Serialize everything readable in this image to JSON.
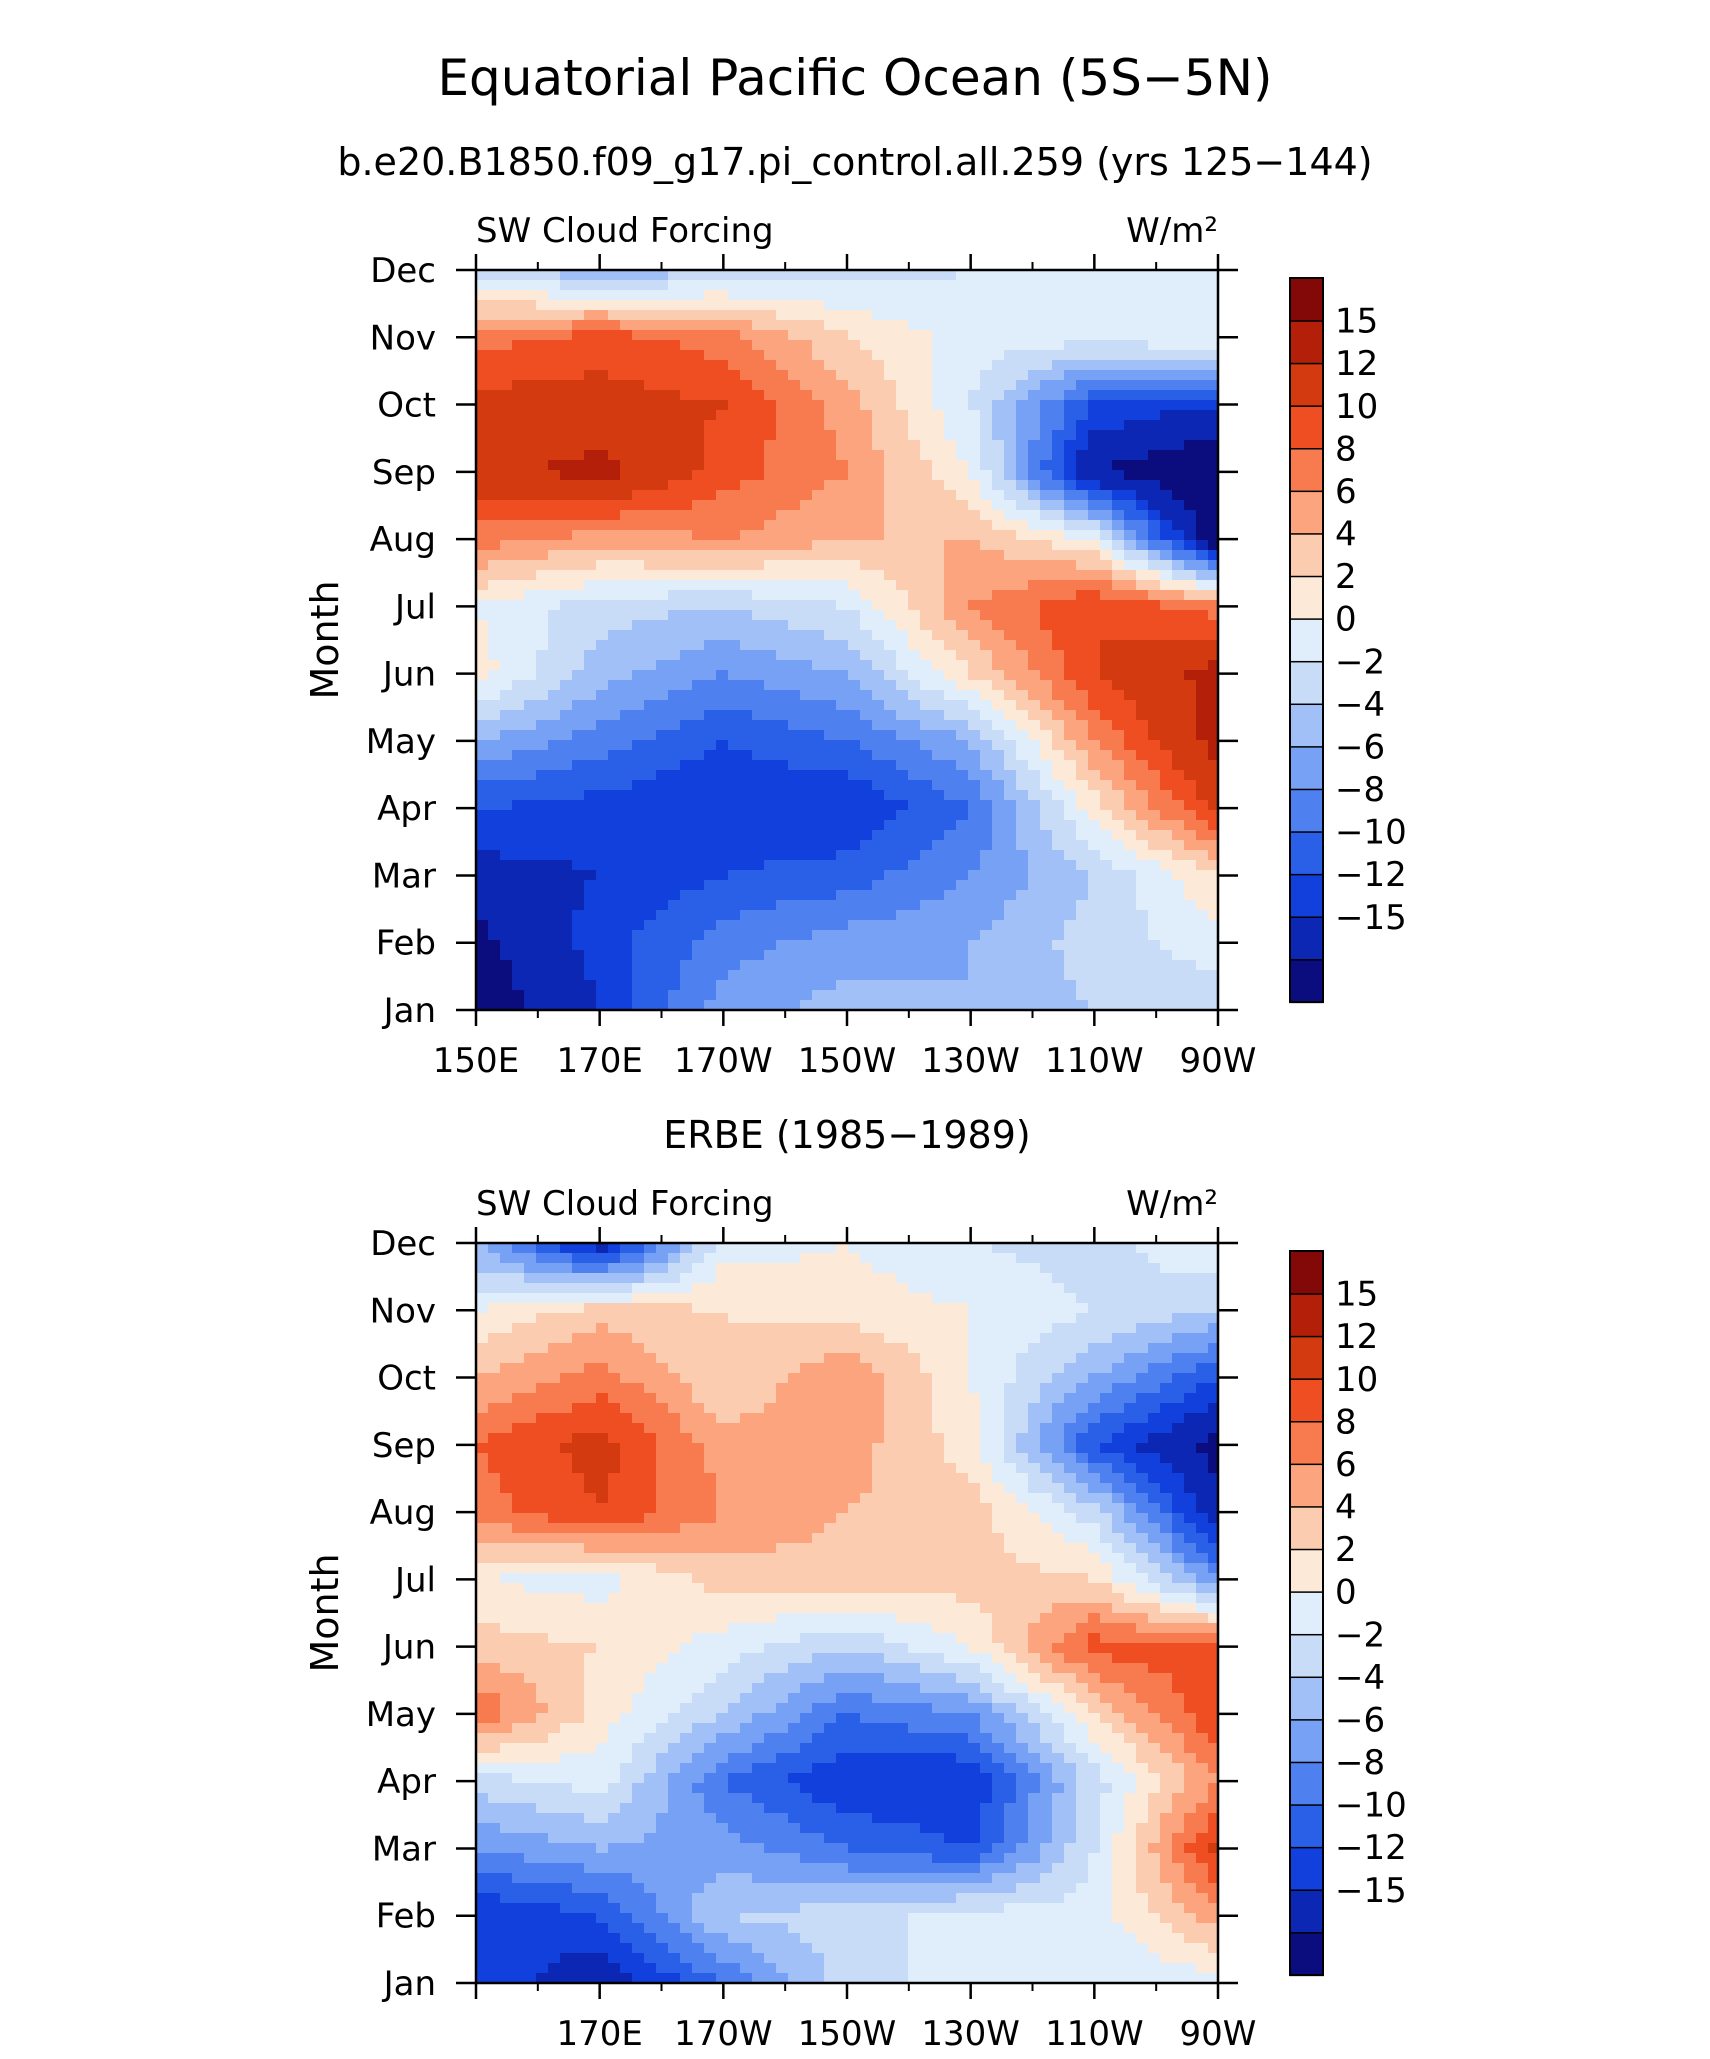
{
  "figure": {
    "title": "Equatorial Pacific Ocean (5S−5N)",
    "subtitle": "b.e20.B1850.f09_g17.pi_control.all.259 (yrs 125−144)"
  },
  "colors": {
    "levels": [
      "#0b0c7e",
      "#0b27b3",
      "#1240dc",
      "#2a5fe8",
      "#4f80f0",
      "#77a1f5",
      "#a0c0f7",
      "#c8dcf8",
      "#dfeefa",
      "#fde9d8",
      "#fcccb0",
      "#fba47e",
      "#f87a4f",
      "#ef4e22",
      "#d33a10",
      "#b31f08",
      "#830909"
    ]
  },
  "chart_data": [
    {
      "type": "heatmap",
      "name": "model",
      "title": "",
      "left_label": "SW Cloud Forcing",
      "units_label": "W/m²",
      "ylabel": "Month",
      "xlabel": "",
      "x": [
        150,
        170,
        190,
        210,
        230,
        250,
        270
      ],
      "x_tick_labels": [
        "150E",
        "170E",
        "170W",
        "150W",
        "130W",
        "110W",
        "90W"
      ],
      "y_tick_labels": [
        "Jan",
        "Feb",
        "Mar",
        "Apr",
        "May",
        "Jun",
        "Jul",
        "Aug",
        "Sep",
        "Oct",
        "Nov",
        "Dec"
      ],
      "xlim": [
        150,
        270
      ],
      "colorbar_labels": [
        "15",
        "12",
        "10",
        "8",
        "6",
        "4",
        "2",
        "0",
        "−2",
        "−4",
        "−6",
        "−8",
        "−10",
        "−12",
        "−15"
      ],
      "values": [
        [
          -17,
          -12,
          -5,
          -3,
          -4,
          -2,
          -1
        ],
        [
          -16,
          -11,
          -7,
          -5,
          -4,
          -1,
          1
        ],
        [
          -13,
          -12,
          -10,
          -9,
          -6,
          -2,
          4
        ],
        [
          -10,
          -11,
          -12,
          -12,
          -8,
          3,
          13
        ],
        [
          -4,
          -7,
          -10,
          -8,
          -4,
          8,
          16
        ],
        [
          3,
          -3,
          -6,
          -4,
          4,
          12,
          16
        ],
        [
          2,
          -1,
          -2,
          0,
          8,
          12,
          9
        ],
        [
          9,
          7,
          8,
          6,
          6,
          2,
          -18
        ],
        [
          14,
          16,
          11,
          8,
          2,
          -15,
          -18
        ],
        [
          13,
          13,
          12,
          7,
          0,
          -10,
          -12
        ],
        [
          9,
          11,
          9,
          4,
          1,
          1,
          2
        ],
        [
          -1,
          -4,
          -2,
          -1,
          0,
          1,
          2
        ]
      ]
    },
    {
      "type": "heatmap",
      "name": "obs",
      "title": "ERBE (1985−1989)",
      "left_label": "SW Cloud Forcing",
      "units_label": "W/m²",
      "ylabel": "Month",
      "xlabel": "",
      "x": [
        150,
        170,
        190,
        210,
        230,
        250,
        270
      ],
      "x_tick_labels": [
        "170E",
        "170W",
        "150W",
        "130W",
        "110W",
        "90W"
      ],
      "y_tick_labels": [
        "Jan",
        "Feb",
        "Mar",
        "Apr",
        "May",
        "Jun",
        "Jul",
        "Aug",
        "Sep",
        "Oct",
        "Nov",
        "Dec"
      ],
      "xlim": [
        150,
        270
      ],
      "colorbar_labels": [
        "15",
        "12",
        "10",
        "8",
        "6",
        "4",
        "2",
        "0",
        "−2",
        "−4",
        "−6",
        "−8",
        "−10",
        "−12",
        "−15"
      ],
      "values": [
        [
          -10,
          -14,
          -8,
          -1,
          1,
          0,
          1
        ],
        [
          -12,
          -10,
          -2,
          -1,
          1,
          1,
          7
        ],
        [
          -6,
          -4,
          -5,
          -8,
          -10,
          0,
          13
        ],
        [
          -1,
          1,
          -8,
          -12,
          -12,
          -1,
          8
        ],
        [
          10,
          3,
          -2,
          -8,
          -6,
          4,
          12
        ],
        [
          5,
          4,
          1,
          -2,
          2,
          11,
          11
        ],
        [
          2,
          1,
          5,
          5,
          5,
          4,
          -6
        ],
        [
          9,
          12,
          8,
          6,
          5,
          -1,
          -14
        ],
        [
          10,
          13,
          7,
          7,
          3,
          -10,
          -16
        ],
        [
          6,
          9,
          4,
          8,
          2,
          -4,
          -10
        ],
        [
          2,
          5,
          4,
          3,
          2,
          0,
          -2
        ],
        [
          -4,
          -14,
          1,
          2,
          0,
          -1,
          2
        ]
      ]
    }
  ]
}
